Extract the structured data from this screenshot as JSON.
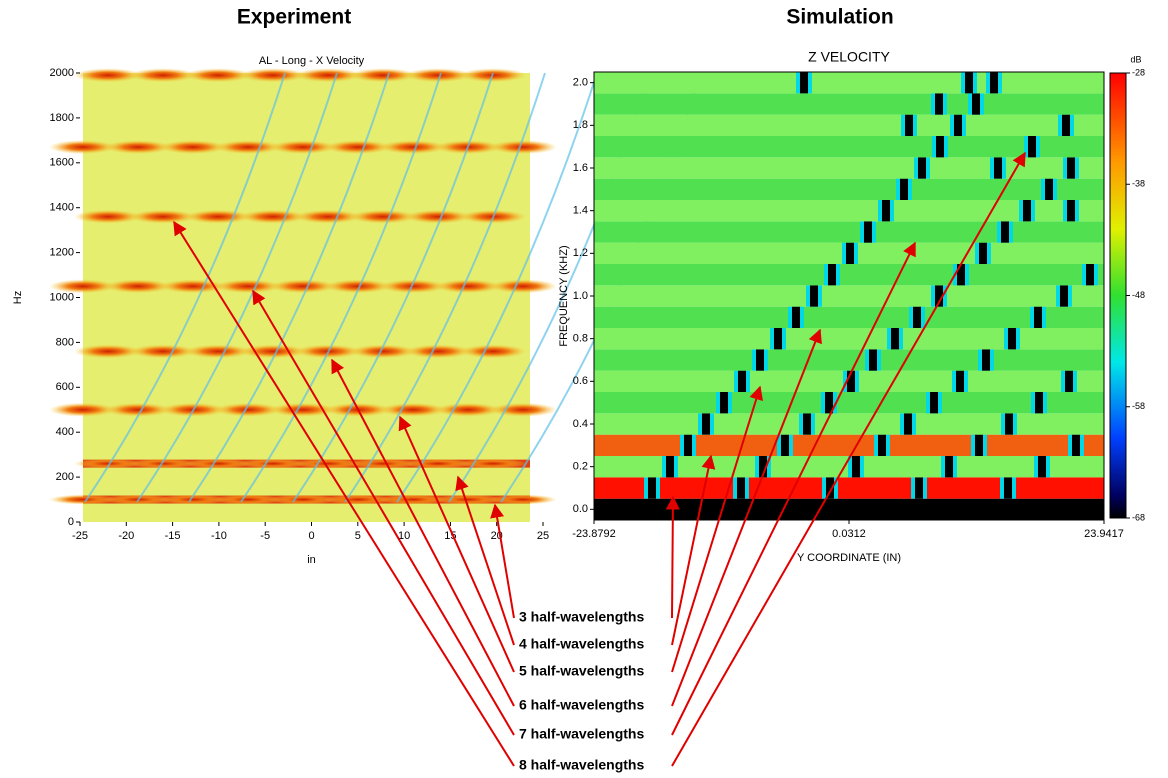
{
  "headers": [
    "Experiment",
    "Simulation"
  ],
  "annotations": [
    "3 half-wavelengths",
    "4 half-wavelengths",
    "5 half-wavelengths",
    "6 half-wavelengths",
    "7 half-wavelengths",
    "8 half-wavelengths"
  ],
  "chart_data": [
    {
      "type": "heatmap",
      "title": "AL - Long - X Velocity",
      "x_label": "in",
      "y_label": "Hz",
      "xlim": [
        -25,
        25
      ],
      "xticks": [
        -25,
        -20,
        -15,
        -10,
        -5,
        0,
        5,
        10,
        15,
        20,
        25
      ],
      "ylim": [
        0,
        2000
      ],
      "yticks": [
        0,
        200,
        400,
        600,
        800,
        1000,
        1200,
        1400,
        1600,
        1800,
        2000
      ]
    },
    {
      "type": "heatmap",
      "title": "Z VELOCITY",
      "x_label": "Y COORDINATE (IN)",
      "y_label": "FREQUENCY (KHZ)",
      "xlim": [
        -23.8792,
        23.9417
      ],
      "xticks": [
        -23.8792,
        0.0312,
        23.9417
      ],
      "ylim": [
        -0.05,
        2.05
      ],
      "yticks": [
        {
          "value": 0,
          "label": "0.0"
        },
        0.2,
        0.4,
        0.6,
        0.8,
        {
          "value": 1,
          "label": "1.0"
        },
        1.2,
        1.4,
        1.6,
        1.8,
        {
          "value": 2,
          "label": "2.0"
        }
      ],
      "colorbar": {
        "label": "dB",
        "lim": [
          -68,
          -28
        ],
        "ticks": [
          -28,
          -38,
          -48,
          -58,
          -68
        ]
      }
    }
  ]
}
